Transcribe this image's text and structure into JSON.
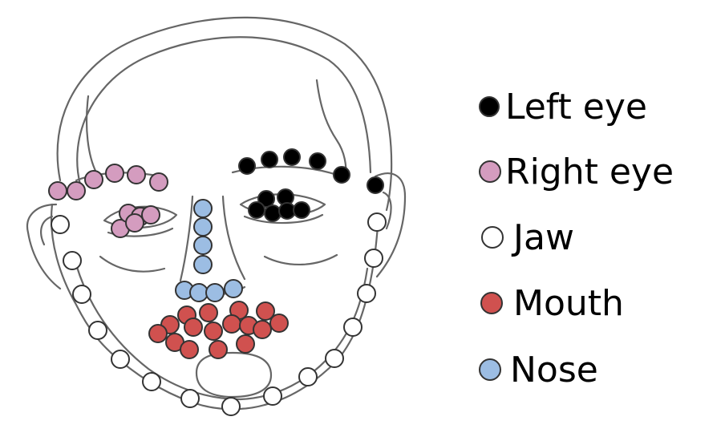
{
  "legend": [
    {
      "label": "Left eye",
      "color": "#000000"
    },
    {
      "label": "Right eye",
      "color": "#d49cbf"
    },
    {
      "label": "Jaw",
      "color": "#ffffff"
    },
    {
      "label": "Mouth",
      "color": "#d0514f"
    },
    {
      "label": "Nose",
      "color": "#9cbde3"
    }
  ]
}
